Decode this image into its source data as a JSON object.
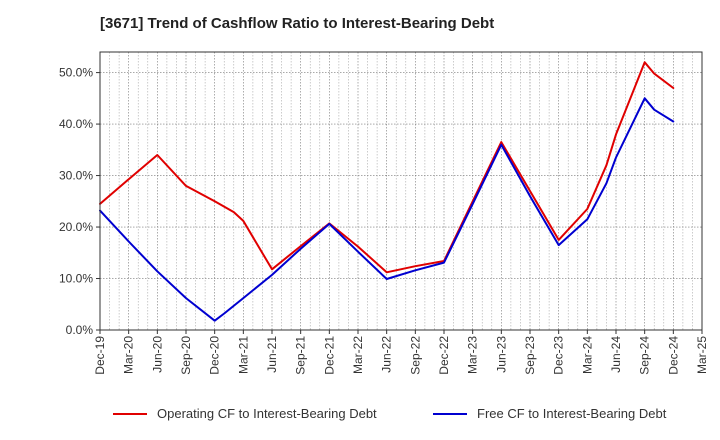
{
  "title": "[3671]  Trend of Cashflow Ratio to Interest-Bearing Debt",
  "chart_data": {
    "type": "line",
    "x": [
      "Dec-19",
      "Mar-20",
      "Jun-20",
      "Sep-20",
      "Dec-20",
      "Mar-21",
      "Jun-21",
      "Sep-21",
      "Dec-21",
      "Mar-22",
      "Jun-22",
      "Sep-22",
      "Dec-22",
      "Mar-23",
      "Jun-23",
      "Sep-23",
      "Dec-23",
      "Mar-24",
      "Jun-24",
      "Sep-24",
      "Dec-24",
      "Mar-25"
    ],
    "y_ticks": [
      "0.0%",
      "10.0%",
      "20.0%",
      "30.0%",
      "40.0%",
      "50.0%"
    ],
    "ylim": [
      0,
      54
    ],
    "grid": true,
    "legend_position": "bottom",
    "series": [
      {
        "name": "Operating CF to Interest-Bearing Debt",
        "color": "#e00000",
        "points": [
          [
            "Dec-19",
            24.5
          ],
          [
            "Mar-20",
            29.3
          ],
          [
            "Jun-20",
            34.0
          ],
          [
            "Sep-20",
            28.0
          ],
          [
            "Dec-20",
            25.0
          ],
          [
            "Feb-21",
            22.9
          ],
          [
            "Mar-21",
            21.2
          ],
          [
            "Jun-21",
            11.8
          ],
          [
            "Sep-21",
            16.3
          ],
          [
            "Dec-21",
            20.7
          ],
          [
            "Mar-22",
            16.2
          ],
          [
            "Jun-22",
            11.2
          ],
          [
            "Sep-22",
            12.4
          ],
          [
            "Dec-22",
            13.4
          ],
          [
            "Mar-23",
            25.0
          ],
          [
            "Jun-23",
            36.5
          ],
          [
            "Sep-23",
            27.0
          ],
          [
            "Dec-23",
            17.5
          ],
          [
            "Mar-24",
            23.5
          ],
          [
            "May-24",
            32.0
          ],
          [
            "Jun-24",
            38.0
          ],
          [
            "Sep-24",
            52.0
          ],
          [
            "Oct-24",
            49.8
          ],
          [
            "Dec-24",
            47.0
          ]
        ]
      },
      {
        "name": "Free CF to Interest-Bearing Debt",
        "color": "#0000d0",
        "points": [
          [
            "Dec-19",
            23.2
          ],
          [
            "Mar-20",
            17.2
          ],
          [
            "Jun-20",
            11.4
          ],
          [
            "Sep-20",
            6.2
          ],
          [
            "Dec-20",
            1.8
          ],
          [
            "Jan-21",
            3.2
          ],
          [
            "Mar-21",
            6.2
          ],
          [
            "Jun-21",
            10.7
          ],
          [
            "Sep-21",
            15.8
          ],
          [
            "Dec-21",
            20.6
          ],
          [
            "Mar-22",
            15.2
          ],
          [
            "Jun-22",
            9.9
          ],
          [
            "Sep-22",
            11.6
          ],
          [
            "Dec-22",
            13.1
          ],
          [
            "Mar-23",
            24.5
          ],
          [
            "Jun-23",
            36.0
          ],
          [
            "Sep-23",
            26.0
          ],
          [
            "Dec-23",
            16.5
          ],
          [
            "Mar-24",
            21.5
          ],
          [
            "May-24",
            28.5
          ],
          [
            "Jun-24",
            33.5
          ],
          [
            "Sep-24",
            45.0
          ],
          [
            "Oct-24",
            42.8
          ],
          [
            "Dec-24",
            40.5
          ]
        ]
      }
    ]
  }
}
